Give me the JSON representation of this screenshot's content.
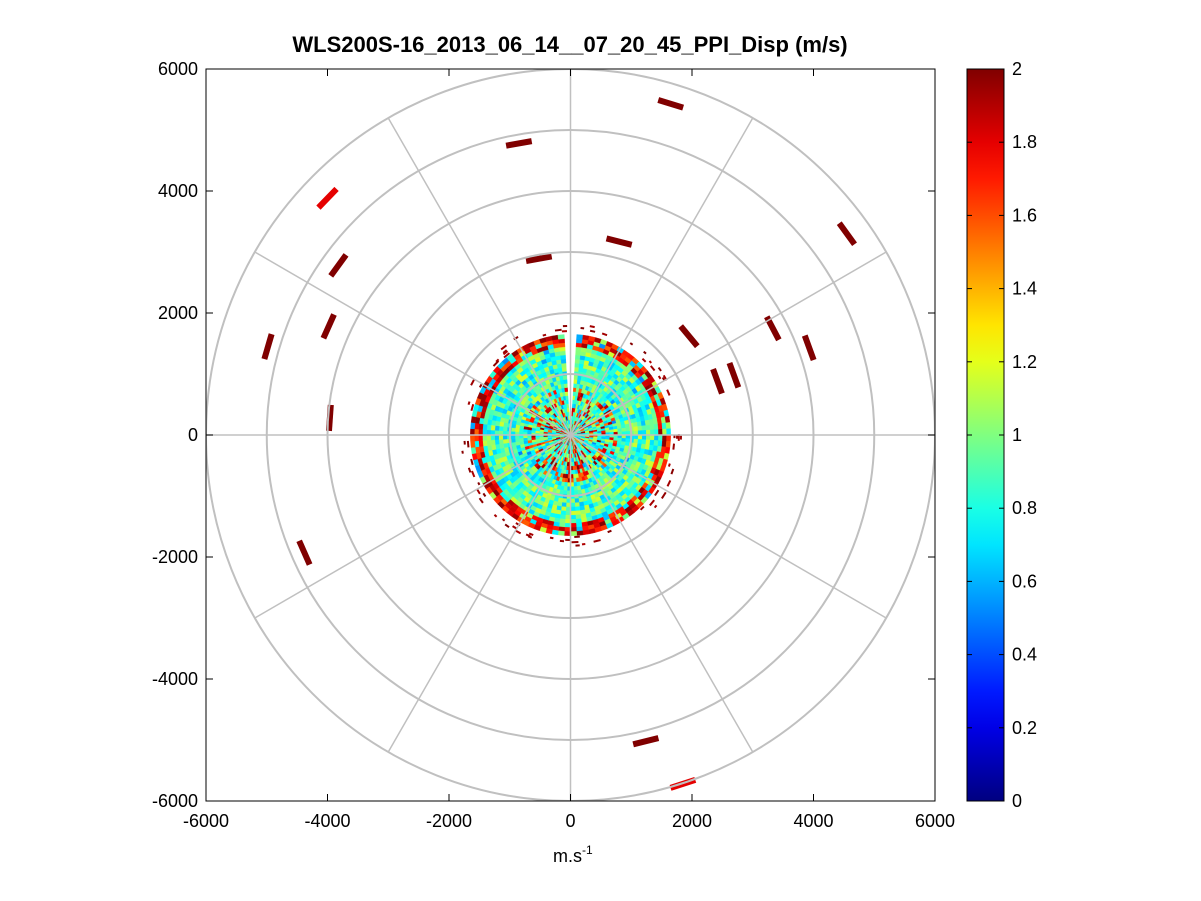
{
  "figure": {
    "title": "WLS200S-16_2013_06_14__07_20_45_PPI_Disp (m/s)",
    "xlabel_base": "m.s",
    "xlabel_sup": "-1"
  },
  "chart_data": {
    "type": "heatmap",
    "subtype": "polar-ppi",
    "title": "WLS200S-16_2013_06_14__07_20_45_PPI_Disp (m/s)",
    "xlabel": "m.s-1",
    "ylabel": "",
    "xlim": [
      -6000,
      6000
    ],
    "ylim": [
      -6000,
      6000
    ],
    "xticks": [
      -6000,
      -4000,
      -2000,
      0,
      2000,
      4000,
      6000
    ],
    "yticks": [
      6000,
      4000,
      2000,
      0,
      -2000,
      -4000,
      -6000
    ],
    "xtick_labels": [
      "-6000",
      "-4000",
      "-2000",
      "0",
      "2000",
      "4000",
      "6000"
    ],
    "ytick_labels": [
      "6000",
      "4000",
      "2000",
      "0",
      "-2000",
      "-4000",
      "-6000"
    ],
    "range_rings": [
      1000,
      2000,
      3000,
      4000,
      5000,
      6000
    ],
    "spoke_angles_deg": [
      0,
      30,
      60,
      90,
      120,
      150,
      180,
      210,
      240,
      270,
      300,
      330
    ],
    "colorbar": {
      "min": 0,
      "max": 2,
      "colormap": "jet",
      "ticks": [
        0,
        0.2,
        0.4,
        0.6,
        0.8,
        1,
        1.2,
        1.4,
        1.6,
        1.8,
        2
      ],
      "tick_labels": [
        "0",
        "0.2",
        "0.4",
        "0.6",
        "0.8",
        "1",
        "1.2",
        "1.4",
        "1.6",
        "1.8",
        "2"
      ]
    },
    "dense_region": {
      "range_max_m": 1650,
      "inner_range_m": 300,
      "gap_azimuth_deg": 2,
      "typical_value": 0.9,
      "edge_value": 1.9
    },
    "scatter_gates": [
      {
        "x": 1650,
        "y": 5430,
        "value": 2.0
      },
      {
        "x": -850,
        "y": 4780,
        "value": 2.0
      },
      {
        "x": -4000,
        "y": 3880,
        "value": 1.8
      },
      {
        "x": 4550,
        "y": 3300,
        "value": 2.0
      },
      {
        "x": -3820,
        "y": 2780,
        "value": 2.0
      },
      {
        "x": 800,
        "y": 3170,
        "value": 2.0
      },
      {
        "x": -520,
        "y": 2890,
        "value": 2.0
      },
      {
        "x": -4980,
        "y": 1450,
        "value": 2.0
      },
      {
        "x": -3980,
        "y": 1780,
        "value": 2.0
      },
      {
        "x": 3330,
        "y": 1750,
        "value": 2.0
      },
      {
        "x": 3930,
        "y": 1430,
        "value": 2.0
      },
      {
        "x": 1950,
        "y": 1620,
        "value": 2.0
      },
      {
        "x": 2420,
        "y": 880,
        "value": 2.0
      },
      {
        "x": 2690,
        "y": 980,
        "value": 2.0
      },
      {
        "x": -3960,
        "y": 280,
        "value": 2.0
      },
      {
        "x": -4380,
        "y": -1930,
        "value": 2.0
      },
      {
        "x": 1240,
        "y": -5020,
        "value": 2.0
      },
      {
        "x": 1850,
        "y": -5720,
        "value": 1.8
      }
    ],
    "colors": {
      "grid": "#c0c0c0",
      "axes": "#000000",
      "background": "#ffffff"
    }
  }
}
